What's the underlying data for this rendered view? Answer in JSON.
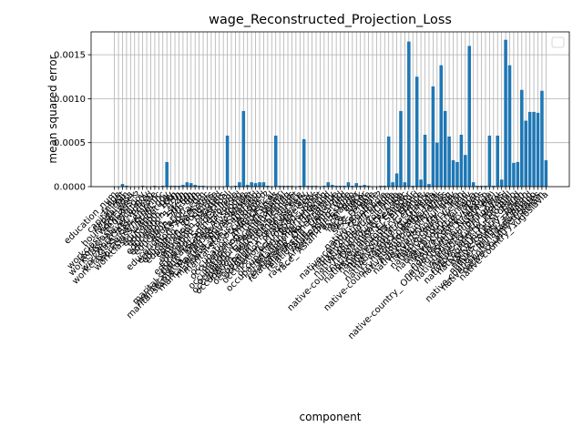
{
  "chart_data": {
    "type": "bar",
    "title": "wage_Reconstructed_Projection_Loss",
    "xlabel": "component",
    "ylabel": "mean squared error",
    "color": "#1f77b4",
    "grid": true,
    "ylim": [
      0,
      0.00176
    ],
    "yticks": [
      {
        "value": 0,
        "label": "0.0000"
      },
      0.0005,
      {
        "value": 0.001,
        "label": "0.0010"
      },
      0.0015
    ],
    "categories": [
      "education_num",
      "age",
      "fnlwgt",
      "capital_gain",
      "capital_loss",
      "hours_per_week",
      "workclass_ ?",
      "workclass_ Federal-gov",
      "workclass_ Local-gov",
      "workclass_ Never-worked",
      "workclass_ Private",
      "workclass_ Self-emp-inc",
      "workclass_ Self-emp-not-inc",
      "workclass_ State-gov",
      "workclass_ Without-pay",
      "education_ 10th",
      "education_ 11th",
      "education_ 12th",
      "education_ 1st-4th",
      "education_ 5th-6th",
      "education_ 7th-8th",
      "education_ 9th",
      "education_ Assoc-acdm",
      "education_ Assoc-voc",
      "education_ Bachelors",
      "education_ Doctorate",
      "education_ HS-grad",
      "education_ Masters",
      "education_ Preschool",
      "education_ Prof-school",
      "education_ Some-college",
      "marital-status_ Divorced",
      "marital-status_ Married-AF-spouse",
      "marital-status_ Married-civ-spouse",
      "marital-status_ Married-spouse-absent",
      "marital-status_ Never-married",
      "marital-status_ Separated",
      "marital-status_ Widowed",
      "occupation_ ?",
      "occupation_ Adm-clerical",
      "occupation_ Armed-Forces",
      "occupation_ Craft-repair",
      "occupation_ Exec-managerial",
      "occupation_ Farming-fishing",
      "occupation_ Handlers-cleaners",
      "occupation_ Machine-op-inspct",
      "occupation_ Other-service",
      "occupation_ Priv-house-serv",
      "occupation_ Prof-specialty",
      "occupation_ Protective-serv",
      "occupation_ Sales",
      "occupation_ Tech-support",
      "occupation_ Transport-moving",
      "relationship_ Husband",
      "relationship_ Not-in-family",
      "relationship_ Other-relative",
      "relationship_ Own-child",
      "relationship_ Unmarried",
      "relationship_ Wife",
      "race_ Amer-Indian-Eskimo",
      "race_ Asian-Pac-Islander",
      "race_ Black",
      "race_ Other",
      "race_ White",
      "sex_ Female",
      "sex_ Male",
      "native-country_ ?",
      "native-country_ Cambodia",
      "native-country_ Canada",
      "native-country_ China",
      "native-country_ Columbia",
      "native-country_ Cuba",
      "native-country_ Dominican-Republic",
      "native-country_ Ecuador",
      "native-country_ El-Salvador",
      "native-country_ England",
      "native-country_ France",
      "native-country_ Germany",
      "native-country_ Greece",
      "native-country_ Guatemala",
      "native-country_ Haiti",
      "native-country_ Holand-Netherlands",
      "native-country_ Honduras",
      "native-country_ Hong",
      "native-country_ Hungary",
      "native-country_ India",
      "native-country_ Iran",
      "native-country_ Ireland",
      "native-country_ Italy",
      "native-country_ Jamaica",
      "native-country_ Japan",
      "native-country_ Laos",
      "native-country_ Mexico",
      "native-country_ Nicaragua",
      "native-country_ Outlying-US(Guam-USVI-etc)",
      "native-country_ Peru",
      "native-country_ Philippines",
      "native-country_ Poland",
      "native-country_ Portugal",
      "native-country_ Puerto-Rico",
      "native-country_ Scotland",
      "native-country_ South",
      "native-country_ Taiwan",
      "native-country_ Thailand",
      "native-country_ Trinadad&Tobago",
      "native-country_ United-States",
      "native-country_ Vietnam",
      "native-country_ Yugoslavia"
    ],
    "values": [
      0,
      0,
      3e-05,
      1e-05,
      0,
      0,
      0,
      1e-05,
      0,
      0,
      1e-05,
      0,
      1e-05,
      0.00028,
      1e-05,
      1e-05,
      1e-05,
      2e-05,
      5e-05,
      4e-05,
      2e-05,
      1e-05,
      1e-05,
      0,
      0,
      0,
      0,
      0,
      0.00058,
      0,
      1e-05,
      5e-05,
      0.00086,
      2e-05,
      5e-05,
      4e-05,
      5e-05,
      5e-05,
      1e-05,
      0,
      0.00058,
      1e-05,
      1e-05,
      1e-05,
      1e-05,
      0,
      1e-05,
      0.00054,
      1e-05,
      1e-05,
      1e-05,
      0,
      1e-05,
      5e-05,
      2e-05,
      1e-05,
      1e-05,
      1e-05,
      5e-05,
      1e-05,
      4e-05,
      1e-05,
      2e-05,
      1e-05,
      0,
      0,
      1e-05,
      1e-05,
      0.00057,
      5e-05,
      0.00015,
      0.00086,
      5e-05,
      0.00165,
      1e-05,
      0.00125,
      8e-05,
      0.00059,
      3e-05,
      0.00114,
      0.0005,
      0.00138,
      0.00086,
      0.00057,
      0.0003,
      0.00028,
      0.00059,
      0.00036,
      0.0016,
      5e-05,
      1e-05,
      1e-05,
      1e-05,
      0.00058,
      1e-05,
      0.00058,
      8e-05,
      0.00167,
      0.00138,
      0.00027,
      0.00028,
      0.0011,
      0.00075,
      0.00085,
      0.00085,
      0.00084,
      0.00109,
      0.0003
    ]
  }
}
